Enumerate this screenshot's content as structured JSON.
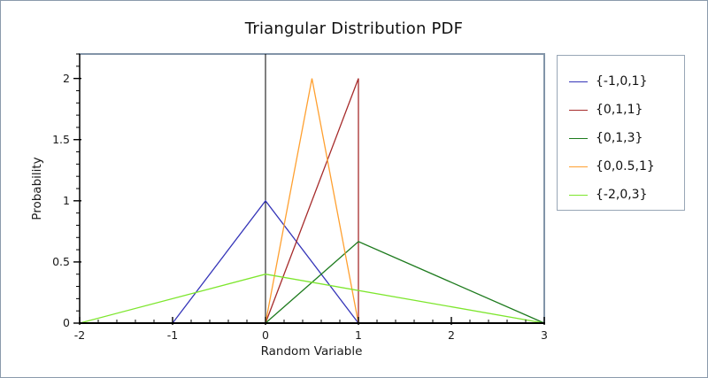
{
  "window": {
    "background": "#ffffff",
    "border_color": "#8a9aac"
  },
  "chart_data": {
    "type": "line",
    "title": "Triangular Distribution PDF",
    "xlabel": "Random Variable",
    "ylabel": "Probability",
    "xlim": [
      -2,
      3
    ],
    "ylim": [
      0,
      2.2
    ],
    "grid": false,
    "legend_position": "outside-right",
    "y_axis_line_at_x": 0,
    "xticks": {
      "major": [
        -2,
        -1,
        0,
        1,
        2,
        3
      ],
      "labels": [
        "-2",
        "-1",
        "0",
        "1",
        "2",
        "3"
      ],
      "minor_step": 0.2
    },
    "yticks": {
      "major": [
        0,
        0.5,
        1,
        1.5,
        2
      ],
      "labels": [
        "0",
        "0.5",
        "1",
        "1.5",
        "2"
      ],
      "minor_step": 0.1
    },
    "colors": {
      "spine": "#8294a8",
      "axis": "#000000",
      "legend_border": "#98a6b6",
      "tick_label": "#1a1a1a"
    },
    "series": [
      {
        "name": "{-1,0,1}",
        "color": "#3434b8",
        "points": [
          [
            -1,
            0
          ],
          [
            0,
            1
          ],
          [
            1,
            0
          ]
        ]
      },
      {
        "name": "{0,1,1}",
        "color": "#a62b2b",
        "points": [
          [
            0,
            0
          ],
          [
            1,
            2
          ],
          [
            1,
            0
          ]
        ]
      },
      {
        "name": "{0,1,3}",
        "color": "#1e7b1e",
        "points": [
          [
            0,
            0
          ],
          [
            1,
            0.6667
          ],
          [
            3,
            0
          ]
        ]
      },
      {
        "name": "{0,0.5,1}",
        "color": "#ffa030",
        "points": [
          [
            0,
            0
          ],
          [
            0.5,
            2
          ],
          [
            1,
            0
          ]
        ]
      },
      {
        "name": "{-2,0,3}",
        "color": "#7de62d",
        "points": [
          [
            -2,
            0
          ],
          [
            0,
            0.4
          ],
          [
            3,
            0
          ]
        ]
      }
    ]
  }
}
